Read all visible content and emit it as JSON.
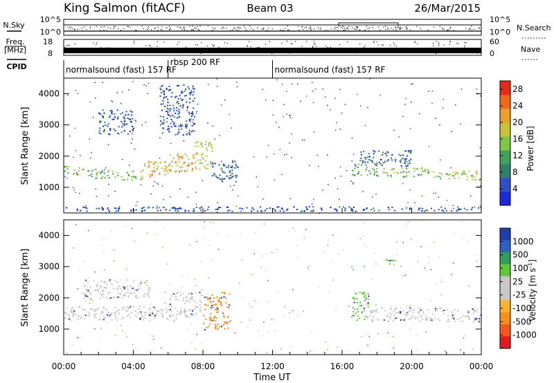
{
  "header": {
    "title": "King Salmon (fitACF)",
    "beam": "Beam 03",
    "date": "26/Mar/2015"
  },
  "strips": {
    "nsky_label": "N.Sky",
    "nsearch_label": "N.Search",
    "freq_label_line1": "Freq.",
    "freq_label_line2": "[MHz]",
    "nave_label": "Nave",
    "cpid_label": "CPID",
    "nsky_ticks": [
      "10^5",
      "10^0"
    ],
    "nsearch_ticks": [
      "10^5",
      "10^0"
    ],
    "freq_ticks": [
      "18",
      "8"
    ],
    "nave_ticks": [
      "60",
      "0"
    ]
  },
  "cpid_segments": [
    {
      "label": "normalsound (fast) 157 RF",
      "start_hour": 0,
      "end_hour": 6
    },
    {
      "label": "rbsp 200 RF",
      "start_hour": 6,
      "end_hour": 12
    },
    {
      "label": "normalsound (fast) 157 RF",
      "start_hour": 12,
      "end_hour": 24
    }
  ],
  "colors": {
    "power_scale": [
      "#1a2bd6",
      "#3050c8",
      "#2f7f6b",
      "#3fa35a",
      "#7ec843",
      "#c9c238",
      "#e9a12a",
      "#ef6a20",
      "#e32a1b"
    ],
    "velocity_scale": [
      "#e31a1c",
      "#f4581c",
      "#f58f1e",
      "#fdb32b",
      "#c8c8c8",
      "#c8c8c8",
      "#5ecb36",
      "#2f9e5b",
      "#2f5fbf",
      "#1f3fa8"
    ]
  },
  "chart_data": [
    {
      "type": "heatmap",
      "panel": "power",
      "xlabel": "Time UT",
      "ylabel": "Slant Range [km]",
      "colorbar_label": "Power [dB]",
      "x_ticks": [
        "00:00",
        "04:00",
        "08:00",
        "12:00",
        "16:00",
        "20:00",
        "00:00"
      ],
      "xlim_hours": [
        0,
        24
      ],
      "ylim": [
        180,
        4500
      ],
      "y_ticks": [
        1000,
        2000,
        3000,
        4000
      ],
      "colorbar_ticks": [
        4,
        8,
        12,
        16,
        20,
        24,
        28
      ],
      "colorbar_range": [
        0,
        30
      ],
      "bands": [
        {
          "start_hour": 0.0,
          "end_hour": 1.0,
          "range_start": 1400,
          "range_end": 1700,
          "level": 16
        },
        {
          "start_hour": 1.0,
          "end_hour": 3.0,
          "range_start": 1300,
          "range_end": 1600,
          "level": 14
        },
        {
          "start_hour": 3.0,
          "end_hour": 4.5,
          "range_start": 1250,
          "range_end": 1550,
          "level": 14
        },
        {
          "start_hour": 4.5,
          "end_hour": 6.0,
          "range_start": 1350,
          "range_end": 1850,
          "level": 20
        },
        {
          "start_hour": 6.0,
          "end_hour": 7.5,
          "range_start": 1500,
          "range_end": 2100,
          "level": 22
        },
        {
          "start_hour": 7.5,
          "end_hour": 8.5,
          "range_start": 1600,
          "range_end": 2500,
          "level": 18
        },
        {
          "start_hour": 8.5,
          "end_hour": 10.0,
          "range_start": 1200,
          "range_end": 1900,
          "level": 6
        },
        {
          "start_hour": 2.0,
          "end_hour": 4.0,
          "range_start": 2700,
          "range_end": 3500,
          "level": 5
        },
        {
          "start_hour": 5.5,
          "end_hour": 7.5,
          "range_start": 2700,
          "range_end": 4300,
          "level": 5
        },
        {
          "start_hour": 16.5,
          "end_hour": 18.0,
          "range_start": 1400,
          "range_end": 1800,
          "level": 12
        },
        {
          "start_hour": 18.0,
          "end_hour": 21.0,
          "range_start": 1350,
          "range_end": 1650,
          "level": 14
        },
        {
          "start_hour": 21.0,
          "end_hour": 24.0,
          "range_start": 1250,
          "range_end": 1550,
          "level": 16
        },
        {
          "start_hour": 17.0,
          "end_hour": 20.0,
          "range_start": 1700,
          "range_end": 2200,
          "level": 6
        },
        {
          "start_hour": 0.0,
          "end_hour": 24.0,
          "range_start": 250,
          "range_end": 400,
          "level": 5
        }
      ]
    },
    {
      "type": "heatmap",
      "panel": "velocity",
      "xlabel": "Time UT",
      "ylabel": "Slant Range [km]",
      "colorbar_label": "Velocity [m s^-1]",
      "x_ticks": [
        "00:00",
        "04:00",
        "08:00",
        "12:00",
        "16:00",
        "20:00",
        "00:00"
      ],
      "xlim_hours": [
        0,
        24
      ],
      "ylim": [
        180,
        4500
      ],
      "y_ticks": [
        1000,
        2000,
        3000,
        4000
      ],
      "colorbar_ticks": [
        "1000",
        "500",
        "100",
        "25",
        "-25",
        "-100",
        "-500",
        "-1000"
      ],
      "bands": [
        {
          "start_hour": 0.0,
          "end_hour": 6.0,
          "range_start": 1300,
          "range_end": 1750,
          "category": "-25 to 25"
        },
        {
          "start_hour": 1.0,
          "end_hour": 5.0,
          "range_start": 2000,
          "range_end": 2600,
          "category": "-25 to 25"
        },
        {
          "start_hour": 6.0,
          "end_hour": 8.0,
          "range_start": 1400,
          "range_end": 2200,
          "category": "-25 to 25"
        },
        {
          "start_hour": 8.0,
          "end_hour": 9.5,
          "range_start": 1000,
          "range_end": 2200,
          "category": "-500 to -100"
        },
        {
          "start_hour": 16.5,
          "end_hour": 17.5,
          "range_start": 1300,
          "range_end": 2200,
          "category": "100 to 500"
        },
        {
          "start_hour": 17.5,
          "end_hour": 24.0,
          "range_start": 1250,
          "range_end": 1700,
          "category": "-25 to 25"
        },
        {
          "start_hour": 18.5,
          "end_hour": 19.0,
          "range_start": 3100,
          "range_end": 3250,
          "category": "100 to 500"
        }
      ]
    }
  ]
}
